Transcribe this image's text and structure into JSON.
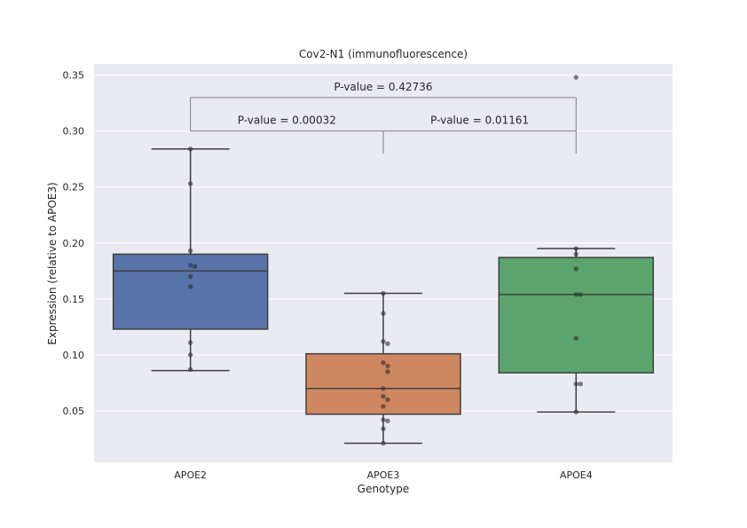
{
  "chart_data": {
    "type": "box",
    "title": "Cov2-N1 (immunofluorescence)",
    "xlabel": "Genotype",
    "ylabel": "Expression (relative to APOE3)",
    "categories": [
      "APOE2",
      "APOE3",
      "APOE4"
    ],
    "ylim": [
      0.004,
      0.36
    ],
    "yticks": [
      0.05,
      0.1,
      0.15,
      0.2,
      0.25,
      0.3,
      0.35
    ],
    "ytick_labels": [
      "0.05",
      "0.10",
      "0.15",
      "0.20",
      "0.25",
      "0.30",
      "0.35"
    ],
    "colors": [
      "#5874a8",
      "#cf8760",
      "#5ba46d"
    ],
    "background": "#eaeaf2",
    "grid": true,
    "boxes": [
      {
        "name": "APOE2",
        "whisker_low": 0.086,
        "q1": 0.123,
        "median": 0.175,
        "q3": 0.19,
        "whisker_high": 0.284
      },
      {
        "name": "APOE3",
        "whisker_low": 0.021,
        "q1": 0.047,
        "median": 0.07,
        "q3": 0.101,
        "whisker_high": 0.155
      },
      {
        "name": "APOE4",
        "whisker_low": 0.049,
        "q1": 0.084,
        "median": 0.154,
        "q3": 0.187,
        "whisker_high": 0.195
      }
    ],
    "points": [
      [
        0.284,
        0.253,
        0.193,
        0.18,
        0.179,
        0.17,
        0.161,
        0.111,
        0.1,
        0.087
      ],
      [
        0.155,
        0.137,
        0.112,
        0.11,
        0.093,
        0.09,
        0.085,
        0.07,
        0.063,
        0.06,
        0.054,
        0.042,
        0.041,
        0.034,
        0.021
      ],
      [
        0.348,
        0.195,
        0.19,
        0.177,
        0.154,
        0.154,
        0.115,
        0.074,
        0.074,
        0.049
      ]
    ],
    "annotations": [
      {
        "from": 0,
        "to": 1,
        "y": 0.3,
        "label": "P-value = 0.00032"
      },
      {
        "from": 1,
        "to": 2,
        "y": 0.3,
        "label": "P-value = 0.01161"
      },
      {
        "from": 0,
        "to": 2,
        "y": 0.33,
        "label": "P-value = 0.42736"
      }
    ]
  }
}
